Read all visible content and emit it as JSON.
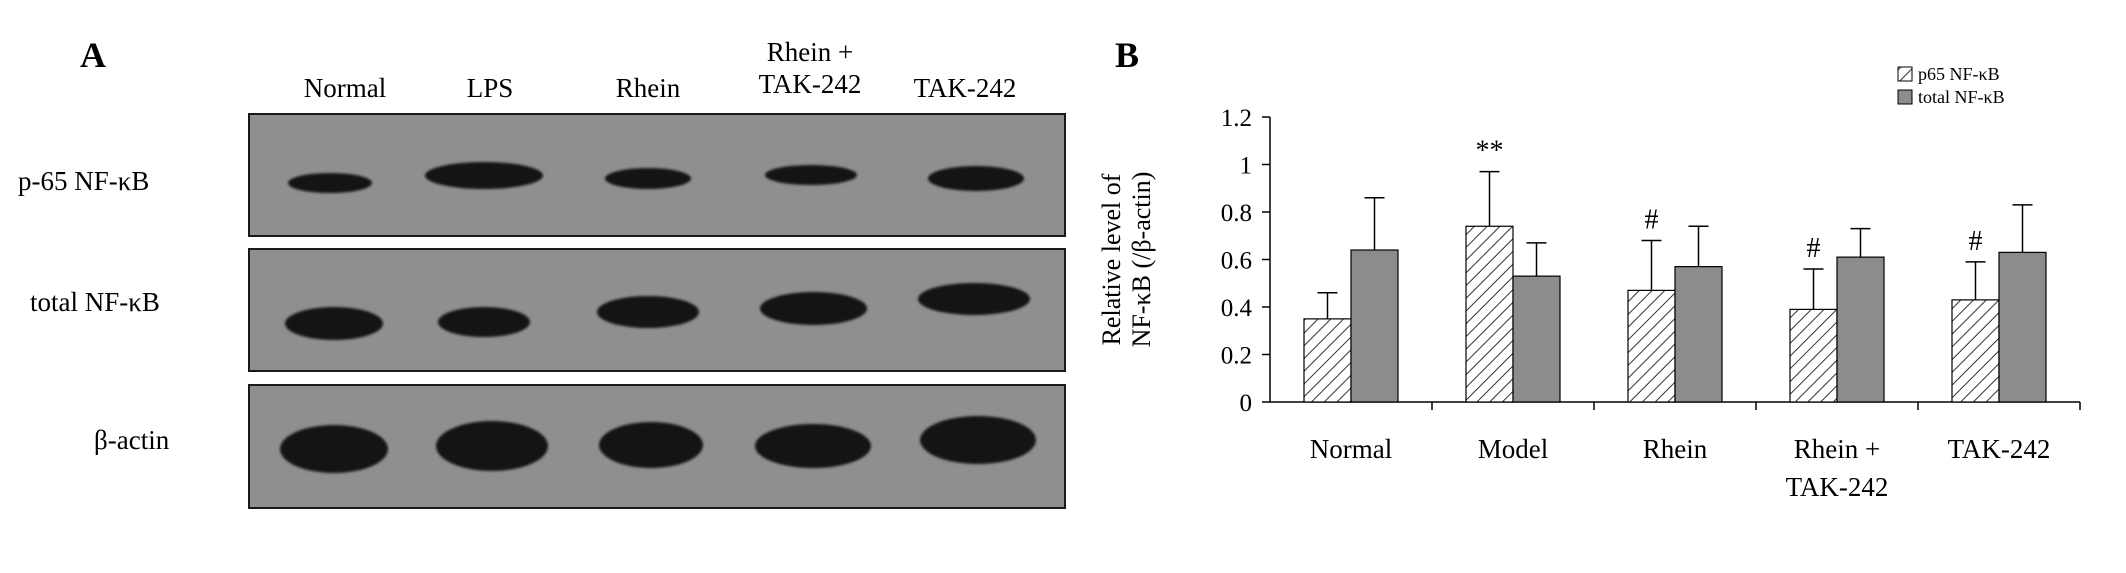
{
  "panel_a": {
    "letter": "A",
    "lanes": [
      "Normal",
      "LPS",
      "Rhein",
      "Rhein +\nTAK-242",
      "TAK-242"
    ],
    "rows": [
      {
        "label": "p-65 NF-κB"
      },
      {
        "label": "total NF-κB"
      },
      {
        "label": "β-actin"
      }
    ],
    "colors": {
      "membrane": "#8f8f8f",
      "band": "#141414"
    }
  },
  "panel_b": {
    "letter": "B"
  },
  "chart_data": {
    "type": "bar",
    "title": "",
    "ylabel": "Relative level of NF-κB (/β-actin)",
    "xlabel": "",
    "categories": [
      "Normal",
      "Model",
      "Rhein",
      "Rhein +\nTAK-242",
      "TAK-242"
    ],
    "ylim": [
      0,
      1.2
    ],
    "yticks": [
      "0",
      "0.2",
      "0.4",
      "0.6",
      "0.8",
      "1",
      "1.2"
    ],
    "series": [
      {
        "name": "p65 NF-κB",
        "pattern": "hatched",
        "values": [
          0.35,
          0.74,
          0.47,
          0.39,
          0.43
        ],
        "errors": [
          0.11,
          0.23,
          0.21,
          0.17,
          0.16
        ]
      },
      {
        "name": "total NF-κB",
        "pattern": "solid",
        "color": "#8c8c8c",
        "values": [
          0.64,
          0.53,
          0.57,
          0.61,
          0.63
        ],
        "errors": [
          0.22,
          0.14,
          0.17,
          0.12,
          0.2
        ]
      }
    ],
    "annotations": [
      "",
      "**",
      "#",
      "#",
      "#"
    ],
    "legend": "top-right",
    "grid": false
  }
}
